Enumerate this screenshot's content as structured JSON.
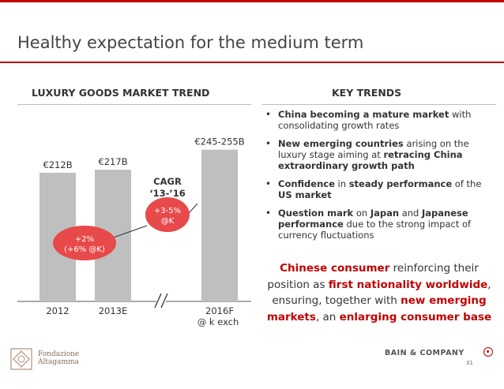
{
  "slide": {
    "title": "Healthy expectation for the medium term",
    "page_number": "31"
  },
  "left_section": {
    "heading": "LUXURY GOODS MARKET TREND"
  },
  "right_section": {
    "heading": "KEY TRENDS"
  },
  "chart_data": {
    "type": "bar",
    "title": "LUXURY GOODS MARKET TREND",
    "categories": [
      "2012",
      "2013E",
      "2016F"
    ],
    "category_sublabels": [
      "",
      "",
      "@ k exch"
    ],
    "values": [
      212,
      217,
      250
    ],
    "value_labels": [
      "€212B",
      "€217B",
      "€245-255B"
    ],
    "units": "€B",
    "axis_break_between": [
      "2013E",
      "2016F"
    ],
    "annotations": [
      {
        "text": "+2%",
        "subtext": "(+6% @K)",
        "between": [
          "2012",
          "2013E"
        ]
      },
      {
        "text": "+3-5%",
        "subtext": "@K",
        "between": [
          "2013E",
          "2016F"
        ]
      }
    ],
    "cagr_label": [
      "CAGR",
      "‘13-’16"
    ],
    "bar_color": "#bfbfbf",
    "annotation_color": "#e8494a"
  },
  "bullets": [
    {
      "parts": [
        {
          "text": "China becoming a mature market",
          "bold": true
        },
        {
          "text": " with consolidating growth rates",
          "bold": false
        }
      ]
    },
    {
      "parts": [
        {
          "text": "New emerging countries",
          "bold": true
        },
        {
          "text": " arising on the luxury stage aiming at ",
          "bold": false
        },
        {
          "text": "retracing China extraordinary growth path",
          "bold": true
        }
      ]
    },
    {
      "parts": [
        {
          "text": "Confidence",
          "bold": true
        },
        {
          "text": " in ",
          "bold": false
        },
        {
          "text": "steady performance",
          "bold": true
        },
        {
          "text": " of the ",
          "bold": false
        },
        {
          "text": "US market",
          "bold": true
        }
      ]
    },
    {
      "parts": [
        {
          "text": "Question mark",
          "bold": true
        },
        {
          "text": " on ",
          "bold": false
        },
        {
          "text": "Japan",
          "bold": true
        },
        {
          "text": " and ",
          "bold": false
        },
        {
          "text": "Japanese performance",
          "bold": true
        },
        {
          "text": " due to the strong impact of currency fluctuations",
          "bold": false
        }
      ]
    }
  ],
  "callout": {
    "parts": [
      {
        "text": "Chinese consumer",
        "highlight": true
      },
      {
        "text": " reinforcing their position as ",
        "highlight": false
      },
      {
        "text": "first nationality worldwide",
        "highlight": true
      },
      {
        "text": ", ensuring, together with ",
        "highlight": false
      },
      {
        "text": "new emerging markets",
        "highlight": true
      },
      {
        "text": ", an ",
        "highlight": false
      },
      {
        "text": "enlarging consumer base",
        "highlight": true
      }
    ]
  },
  "footer": {
    "left_logo_lines": [
      "Fondazione",
      "Altagamma"
    ],
    "right_logo": "BAIN & COMPANY",
    "logo_icons": [
      "fondazione-seal-icon",
      "bain-circle-icon"
    ]
  },
  "colors": {
    "accent": "#c00000",
    "bar": "#bfbfbf",
    "annotation": "#e8494a"
  }
}
